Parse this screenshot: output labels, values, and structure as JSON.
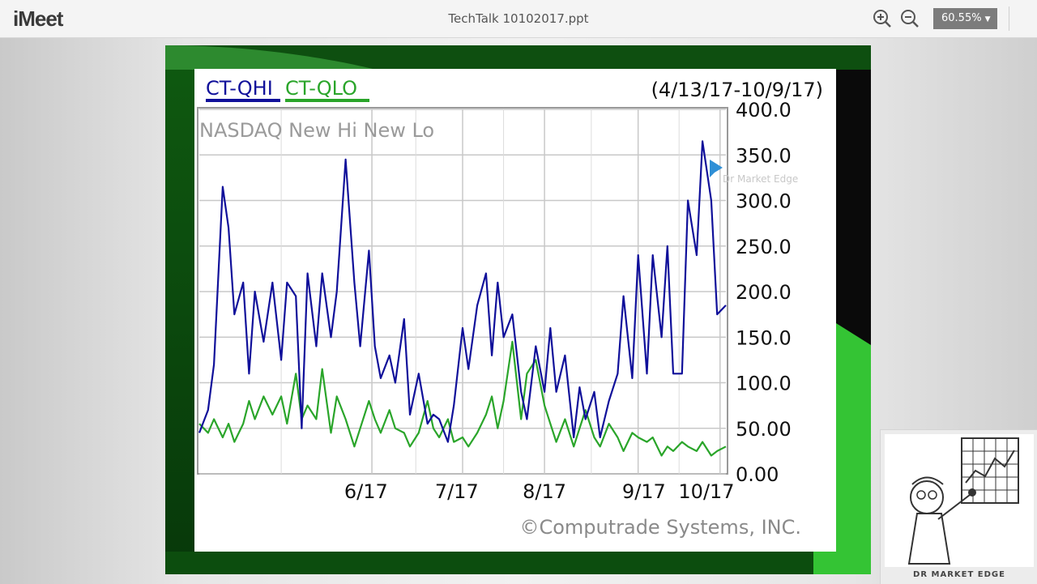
{
  "app": {
    "logo": "iMeet",
    "document_title": "TechTalk 10102017.ppt",
    "zoom_level": "60.55%"
  },
  "icons": {
    "zoom_in": "zoom-in-icon",
    "zoom_out": "zoom-out-icon",
    "dropdown": "chevron-down-icon"
  },
  "slide": {
    "legend_hi": "CT-QHI",
    "legend_lo": "CT-QLO",
    "date_range": "(4/13/17-10/9/17)",
    "chart_title": "NASDAQ New Hi New Lo",
    "copyright": "©Computrade Systems, INC.",
    "cursor_label": "Dr Market Edge",
    "colors": {
      "hi": "#10109a",
      "lo": "#2aa52a"
    }
  },
  "thumbnail": {
    "caption": "DR MARKET EDGE"
  },
  "chart_data": {
    "type": "line",
    "title": "NASDAQ New Hi New Lo",
    "xlabel": "",
    "ylabel": "",
    "ylim": [
      0,
      400
    ],
    "yticks": [
      "0.00",
      "50.00",
      "100.0",
      "150.0",
      "200.0",
      "250.0",
      "300.0",
      "350.0",
      "400.0"
    ],
    "xticks": [
      "6/17",
      "7/17",
      "8/17",
      "9/17",
      "10/17"
    ],
    "grid": true,
    "legend": "top-left",
    "x": [
      0,
      3,
      5,
      8,
      10,
      12,
      15,
      17,
      19,
      22,
      25,
      28,
      30,
      33,
      35,
      37,
      40,
      42,
      45,
      47,
      50,
      53,
      55,
      58,
      60,
      62,
      65,
      67,
      70,
      72,
      75,
      78,
      80,
      82,
      85,
      87,
      90,
      92,
      95,
      98,
      100,
      102,
      104,
      107,
      110,
      112,
      115,
      118,
      120,
      122,
      125,
      128,
      130,
      132,
      135,
      137,
      140,
      143,
      145,
      148,
      150,
      153,
      155,
      158,
      160,
      162,
      165,
      167,
      170,
      172,
      175,
      177,
      180
    ],
    "series": [
      {
        "name": "CT-QHI",
        "values": [
          45,
          70,
          120,
          315,
          270,
          175,
          210,
          110,
          200,
          145,
          210,
          125,
          210,
          195,
          50,
          220,
          140,
          220,
          150,
          200,
          345,
          210,
          140,
          245,
          140,
          105,
          130,
          100,
          170,
          65,
          110,
          55,
          65,
          60,
          35,
          75,
          160,
          115,
          185,
          220,
          130,
          210,
          150,
          175,
          90,
          60,
          140,
          90,
          160,
          90,
          130,
          40,
          95,
          60,
          90,
          40,
          80,
          110,
          195,
          105,
          240,
          110,
          240,
          150,
          250,
          110,
          110,
          300,
          240,
          365,
          300,
          175,
          185
        ],
        "color": "#10109a"
      },
      {
        "name": "CT-QLO",
        "values": [
          55,
          45,
          60,
          40,
          55,
          35,
          55,
          80,
          60,
          85,
          65,
          85,
          55,
          110,
          60,
          75,
          60,
          115,
          45,
          85,
          60,
          30,
          50,
          80,
          60,
          45,
          70,
          50,
          45,
          30,
          45,
          80,
          50,
          40,
          60,
          35,
          40,
          30,
          45,
          65,
          85,
          50,
          80,
          145,
          60,
          110,
          125,
          75,
          55,
          35,
          60,
          30,
          50,
          70,
          40,
          30,
          55,
          40,
          25,
          45,
          40,
          35,
          40,
          20,
          30,
          25,
          35,
          30,
          25,
          35,
          20,
          25,
          30
        ],
        "color": "#2aa52a"
      }
    ]
  }
}
